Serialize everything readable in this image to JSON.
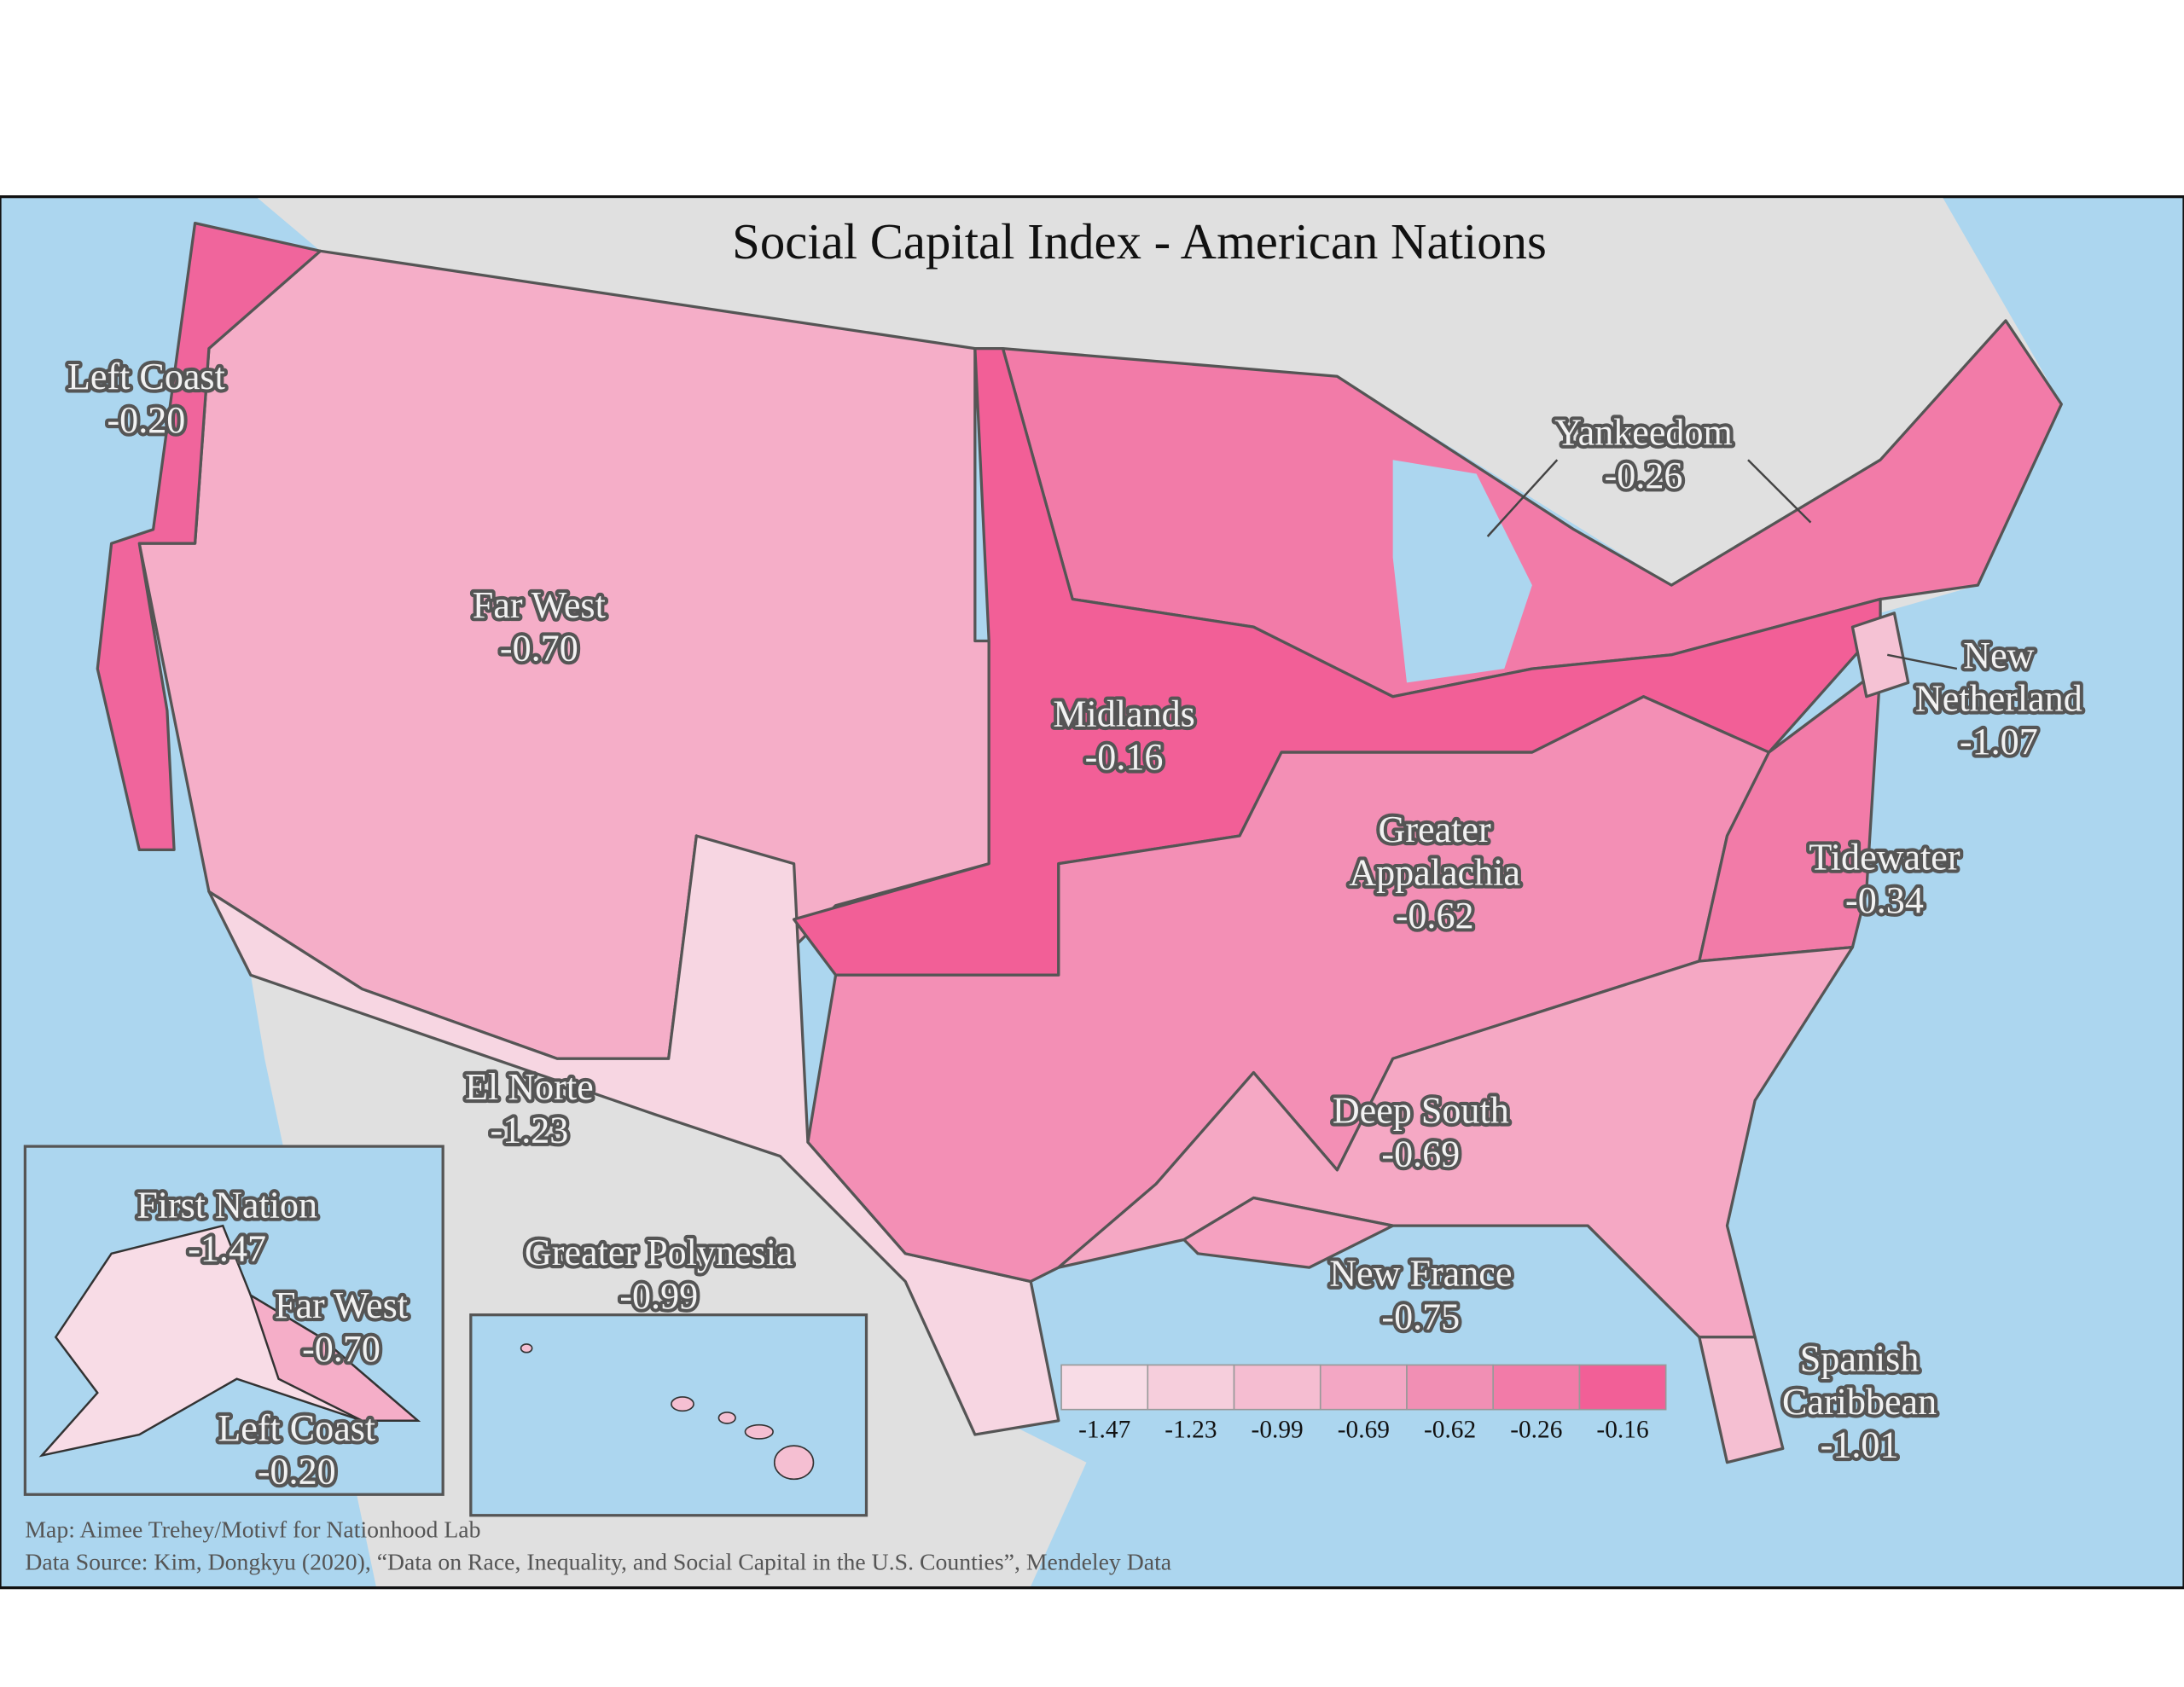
{
  "title": "Social Capital Index - American Nations",
  "regions": [
    {
      "name": [
        "Left Coast"
      ],
      "value": "-0.20"
    },
    {
      "name": [
        "Far West"
      ],
      "value": "-0.70"
    },
    {
      "name": [
        "Yankeedom"
      ],
      "value": "-0.26"
    },
    {
      "name": [
        "Midlands"
      ],
      "value": "-0.16"
    },
    {
      "name": [
        "New",
        "Netherland"
      ],
      "value": "-1.07"
    },
    {
      "name": [
        "Greater",
        "Appalachia"
      ],
      "value": "-0.62"
    },
    {
      "name": [
        "Tidewater"
      ],
      "value": "-0.34"
    },
    {
      "name": [
        "El Norte"
      ],
      "value": "-1.23"
    },
    {
      "name": [
        "Deep South"
      ],
      "value": "-0.69"
    },
    {
      "name": [
        "New France"
      ],
      "value": "-0.75"
    },
    {
      "name": [
        "Spanish",
        "Caribbean"
      ],
      "value": "-1.01"
    },
    {
      "name": [
        "Greater Polynesia"
      ],
      "value": "-0.99"
    },
    {
      "name": [
        "First Nation"
      ],
      "value": "-1.47"
    },
    {
      "name": [
        "Far West"
      ],
      "value": "-0.70"
    },
    {
      "name": [
        "Left Coast"
      ],
      "value": "-0.20"
    }
  ],
  "legend": {
    "labels": [
      "-1.47",
      "-1.23",
      "-0.99",
      "-0.69",
      "-0.62",
      "-0.26",
      "-0.16"
    ],
    "colors": [
      "#f8dce6",
      "#f6cedc",
      "#f5bdd1",
      "#f3a7c4",
      "#f18fb4",
      "#f27ba8",
      "#f25f97"
    ]
  },
  "credits": [
    "Map: Aimee Trehey/Motivf for Nationhood Lab",
    "Data Source: Kim, Dongkyu (2020), “Data on Race, Inequality, and Social Capital in the U.S. Counties”, Mendeley Data"
  ]
}
